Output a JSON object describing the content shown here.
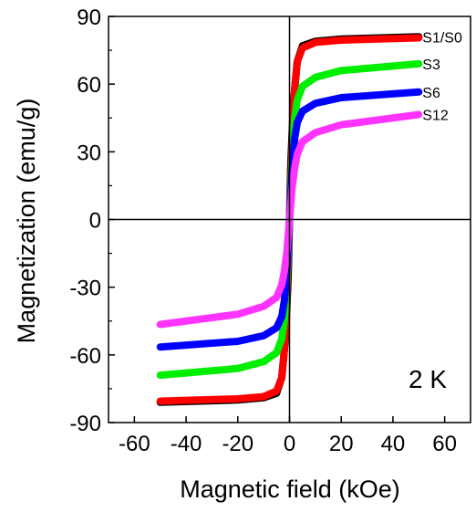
{
  "chart_data": {
    "type": "line",
    "xlabel": "Magnetic field (kOe)",
    "ylabel": "Magnetization (emu/g)",
    "xlim": [
      -70,
      70
    ],
    "ylim": [
      -90,
      90
    ],
    "xticks": [
      -60,
      -40,
      -20,
      0,
      20,
      40,
      60
    ],
    "yticks": [
      -90,
      -60,
      -30,
      0,
      30,
      60,
      90
    ],
    "grid": false,
    "annotation": "2 K",
    "series": [
      {
        "name": "S1/S0",
        "color": "#000000",
        "x": [
          -50,
          -20,
          -10,
          -5,
          -3,
          -1.5,
          -0.5,
          0,
          0.5,
          1.5,
          3,
          5,
          10,
          20,
          50
        ],
        "y": [
          -81,
          -80,
          -79,
          -77,
          -70,
          -52,
          -25,
          0,
          25,
          52,
          70,
          77,
          79,
          80,
          81
        ]
      },
      {
        "name": "",
        "color": "#ff0000",
        "x": [
          -50,
          -20,
          -10,
          -5,
          -3,
          -2,
          -1,
          0,
          1,
          2,
          3,
          5,
          10,
          20,
          50
        ],
        "y": [
          -80.5,
          -79.5,
          -78.5,
          -76,
          -70,
          -58,
          -32,
          0,
          32,
          58,
          70,
          76,
          78.5,
          79.5,
          80.5
        ]
      },
      {
        "name": "S3",
        "color": "#00ee00",
        "x": [
          -50,
          -20,
          -10,
          -5,
          -3,
          -2,
          -1,
          0,
          1,
          2,
          3,
          5,
          10,
          20,
          50
        ],
        "y": [
          -69,
          -66,
          -63,
          -59,
          -53,
          -45,
          -26,
          0,
          26,
          45,
          53,
          59,
          63,
          66,
          69
        ]
      },
      {
        "name": "S6",
        "color": "#0000ff",
        "x": [
          -50,
          -20,
          -10,
          -5,
          -3,
          -2,
          -1,
          0,
          1,
          2,
          3,
          5,
          10,
          20,
          50
        ],
        "y": [
          -56.5,
          -54,
          -51.5,
          -48,
          -43,
          -36,
          -22,
          0,
          22,
          36,
          43,
          48,
          51.5,
          54,
          56.5
        ]
      },
      {
        "name": "S12",
        "color": "#ff33ff",
        "x": [
          -50,
          -20,
          -10,
          -5,
          -3,
          -2,
          -1,
          0,
          1,
          2,
          3,
          5,
          10,
          20,
          50
        ],
        "y": [
          -46.5,
          -42,
          -38.5,
          -34.5,
          -29,
          -23,
          -14,
          0,
          14,
          23,
          29,
          34.5,
          38.5,
          42,
          46.5
        ]
      }
    ]
  }
}
